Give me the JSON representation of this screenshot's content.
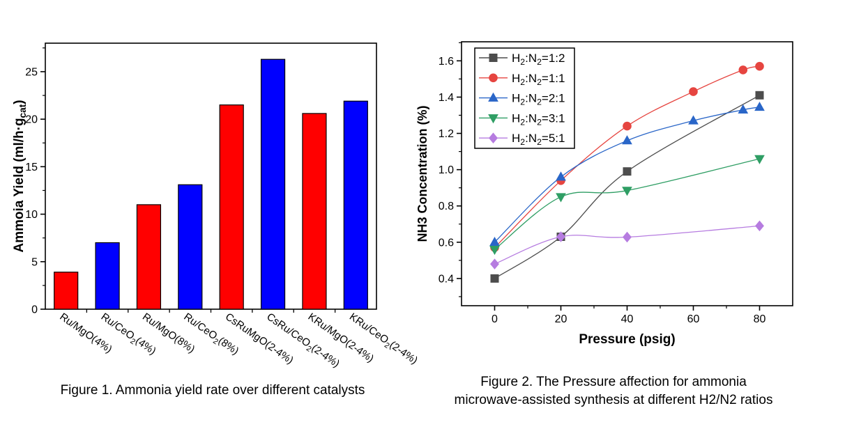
{
  "figure_panel": {
    "background": "#ffffff"
  },
  "chart_data": [
    {
      "id": "figure1",
      "type": "bar",
      "title": "Figure 1. Ammonia yield rate over different catalysts",
      "xlabel": "",
      "ylabel": "Ammoia Yield (ml/h·g_{cat})",
      "categories": [
        "Ru/MgO(4%)",
        "Ru/CeO_{2}(4%)",
        "Ru/MgO(8%)",
        "Ru/CeO_{2}(8%)",
        "CsRuMgO(2-4%)",
        "CsRu/CeO_{2}(2-4%)",
        "KRu/MgO(2-4%)",
        "KRu/CeO_{2}(2-4%)"
      ],
      "values": [
        3.9,
        7.0,
        11.0,
        13.1,
        21.5,
        26.3,
        20.6,
        21.9
      ],
      "bar_colors": [
        "#ff0000",
        "#0000ff",
        "#ff0000",
        "#0000ff",
        "#ff0000",
        "#0000ff",
        "#ff0000",
        "#0000ff"
      ],
      "bar_outline": "#000000",
      "ylim": [
        0,
        28
      ],
      "yticks": [
        0,
        5,
        10,
        15,
        20,
        25
      ],
      "y_minor_step": 2.5,
      "ytick_decimals": 0,
      "grid": false,
      "category_label_rotation_deg": 35
    },
    {
      "id": "figure2",
      "type": "line",
      "title": "Figure 2. The Pressure affection for ammonia microwave-assisted synthesis at different H2/N2 ratios",
      "caption_lines": [
        "Figure 2. The Pressure affection for ammonia",
        "microwave-assisted synthesis at different H2/N2 ratios"
      ],
      "xlabel": "Pressure (psig)",
      "ylabel": "NH3 Concentration (%)",
      "xlim": [
        -10,
        90
      ],
      "ylim": [
        0.25,
        1.705
      ],
      "xticks": [
        0,
        20,
        40,
        60,
        80
      ],
      "yticks": [
        0.4,
        0.6,
        0.8,
        1.0,
        1.2,
        1.4,
        1.6
      ],
      "x_minor_step": 10,
      "y_minor_step": 0.1,
      "xtick_decimals": 0,
      "ytick_decimals": 1,
      "grid": false,
      "legend_position": "inside-top-left",
      "series": [
        {
          "name": "H_{2}:N_{2}=1:2",
          "color": "#4d4d4d",
          "marker": "square",
          "x": [
            0,
            20,
            40,
            80
          ],
          "y": [
            0.4,
            0.63,
            0.99,
            1.41
          ]
        },
        {
          "name": "H_{2}:N_{2}=1:1",
          "color": "#e64540",
          "marker": "circle",
          "x": [
            0,
            20,
            40,
            60,
            75,
            80
          ],
          "y": [
            0.57,
            0.94,
            1.24,
            1.43,
            1.55,
            1.57
          ]
        },
        {
          "name": "H_{2}:N_{2}=2:1",
          "color": "#2a66c8",
          "marker": "triangle-up",
          "x": [
            0,
            20,
            40,
            60,
            75,
            80
          ],
          "y": [
            0.6,
            0.96,
            1.16,
            1.27,
            1.33,
            1.345
          ]
        },
        {
          "name": "H_{2}:N_{2}=3:1",
          "color": "#2f9e64",
          "marker": "triangle-down",
          "x": [
            0,
            20,
            40,
            80
          ],
          "y": [
            0.56,
            0.85,
            0.885,
            1.06
          ]
        },
        {
          "name": "H_{2}:N_{2}=5:1",
          "color": "#b67ce0",
          "marker": "diamond",
          "x": [
            0,
            20,
            40,
            80
          ],
          "y": [
            0.48,
            0.63,
            0.628,
            0.69
          ]
        }
      ]
    }
  ]
}
